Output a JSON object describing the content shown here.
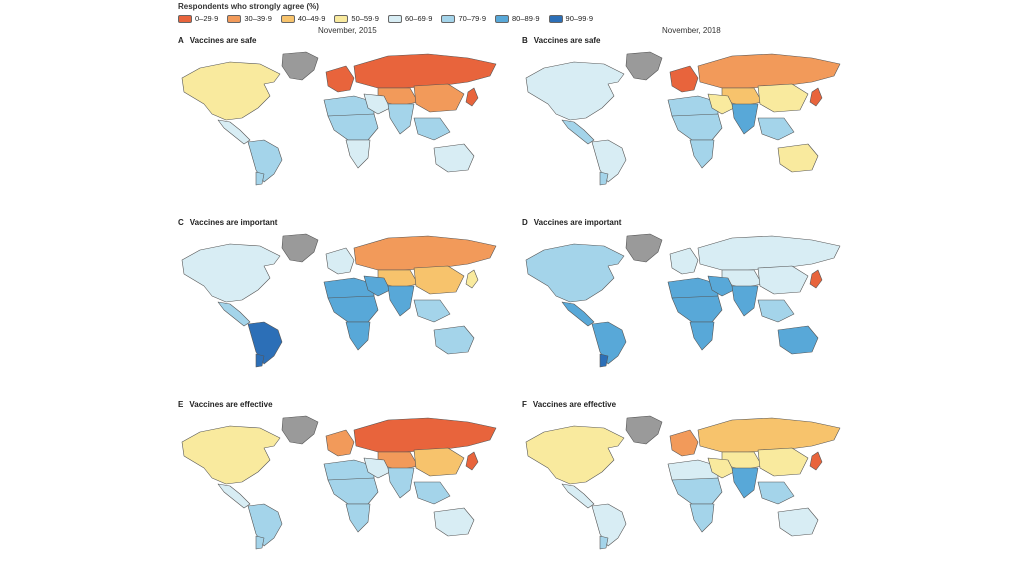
{
  "legend": {
    "title": "Respondents who strongly agree (%)",
    "items": [
      {
        "label": "0–29·9",
        "color": "#e8643c"
      },
      {
        "label": "30–39·9",
        "color": "#f29a5a"
      },
      {
        "label": "40–49·9",
        "color": "#f7c36c"
      },
      {
        "label": "50–59·9",
        "color": "#f9ea9e"
      },
      {
        "label": "60–69·9",
        "color": "#d8edf4"
      },
      {
        "label": "70–79·9",
        "color": "#a4d4ea"
      },
      {
        "label": "80–89·9",
        "color": "#58a8d8"
      },
      {
        "label": "90–99·9",
        "color": "#2c6fb7"
      }
    ],
    "no_data_color": "#9a9a9a"
  },
  "columns": {
    "left": "November, 2015",
    "right": "November, 2018"
  },
  "panels": [
    {
      "letter": "A",
      "title": "Vaccines are safe",
      "regions": {
        "greenland": 8,
        "north_america": 3,
        "central_america": 4,
        "south_america": 5,
        "patagonia": 5,
        "western_europe": 0,
        "russia": 0,
        "central_asia": 1,
        "north_africa": 5,
        "central_africa": 5,
        "southern_africa": 4,
        "middle_east": 4,
        "south_asia": 5,
        "southeast_asia": 5,
        "east_asia": 1,
        "australia": 4,
        "japan": 0
      }
    },
    {
      "letter": "B",
      "title": "Vaccines are safe",
      "regions": {
        "greenland": 8,
        "north_america": 4,
        "central_america": 5,
        "south_america": 4,
        "patagonia": 5,
        "western_europe": 0,
        "russia": 1,
        "central_asia": 2,
        "north_africa": 5,
        "central_africa": 5,
        "southern_africa": 5,
        "middle_east": 3,
        "south_asia": 6,
        "southeast_asia": 5,
        "east_asia": 3,
        "australia": 3,
        "japan": 0
      }
    },
    {
      "letter": "C",
      "title": "Vaccines are important",
      "regions": {
        "greenland": 8,
        "north_america": 4,
        "central_america": 5,
        "south_america": 7,
        "patagonia": 7,
        "western_europe": 4,
        "russia": 1,
        "central_asia": 2,
        "north_africa": 6,
        "central_africa": 6,
        "southern_africa": 6,
        "middle_east": 6,
        "south_asia": 6,
        "southeast_asia": 5,
        "east_asia": 2,
        "australia": 5,
        "japan": 3
      }
    },
    {
      "letter": "D",
      "title": "Vaccines are important",
      "regions": {
        "greenland": 8,
        "north_america": 5,
        "central_america": 6,
        "south_america": 6,
        "patagonia": 7,
        "western_europe": 4,
        "russia": 4,
        "central_asia": 4,
        "north_africa": 6,
        "central_africa": 6,
        "southern_africa": 6,
        "middle_east": 6,
        "south_asia": 6,
        "southeast_asia": 5,
        "east_asia": 4,
        "australia": 6,
        "japan": 0
      }
    },
    {
      "letter": "E",
      "title": "Vaccines are effective",
      "regions": {
        "greenland": 8,
        "north_america": 3,
        "central_america": 4,
        "south_america": 5,
        "patagonia": 5,
        "western_europe": 1,
        "russia": 0,
        "central_asia": 1,
        "north_africa": 5,
        "central_africa": 5,
        "southern_africa": 5,
        "middle_east": 4,
        "south_asia": 5,
        "southeast_asia": 5,
        "east_asia": 2,
        "australia": 4,
        "japan": 0
      }
    },
    {
      "letter": "F",
      "title": "Vaccines are effective",
      "regions": {
        "greenland": 8,
        "north_america": 3,
        "central_america": 4,
        "south_america": 4,
        "patagonia": 5,
        "western_europe": 1,
        "russia": 2,
        "central_asia": 3,
        "north_africa": 4,
        "central_africa": 5,
        "southern_africa": 5,
        "middle_east": 3,
        "south_asia": 6,
        "southeast_asia": 5,
        "east_asia": 3,
        "australia": 4,
        "japan": 0
      }
    }
  ]
}
